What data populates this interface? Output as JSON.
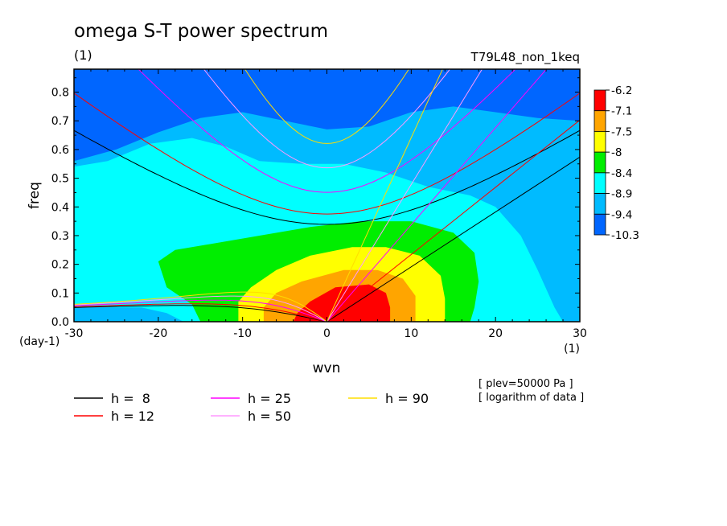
{
  "title": "omega S-T power spectrum",
  "subtitle": "(1)",
  "run_label": "T79L48_non_1keq",
  "notes": [
    "[ plev=50000 Pa ]",
    "[ logarithm of data ]"
  ],
  "chart_data": {
    "type": "heatmap",
    "xlabel": "wvn",
    "ylabel": "freq",
    "x_unit": "(1)",
    "y_unit": "(day-1)",
    "xlim": [
      -30,
      30
    ],
    "ylim": [
      0,
      0.88
    ],
    "x_ticks": [
      -30,
      -20,
      -10,
      0,
      10,
      20,
      30
    ],
    "x_tick_labels": [
      "-30",
      "-20",
      "-10",
      "0",
      "10",
      "20",
      "30"
    ],
    "y_ticks": [
      0,
      0.1,
      0.2,
      0.3,
      0.4,
      0.5,
      0.6,
      0.7,
      0.8
    ],
    "y_tick_labels": [
      "0.0",
      "0.1",
      "0.2",
      "0.3",
      "0.4",
      "0.5",
      "0.6",
      "0.7",
      "0.8"
    ],
    "colorbar": {
      "labels": [
        "-6.2",
        "-7.1",
        "-7.5",
        "-8",
        "-8.4",
        "-8.9",
        "-9.4",
        "-10.3"
      ],
      "colors": [
        "#ff0000",
        "#ffa500",
        "#ffff00",
        "#00ee00",
        "#00ffff",
        "#00bbff",
        "#0066ff"
      ]
    },
    "field_levels": [
      {
        "level": "-9.4",
        "color": "#00bbff"
      },
      {
        "level": "-8.9",
        "color": "#00ffff"
      },
      {
        "level": "-8.4",
        "color": "#00ee00"
      },
      {
        "level": "-8",
        "color": "#ffff00"
      },
      {
        "level": "-7.5",
        "color": "#ffa500"
      },
      {
        "level": "-7.1",
        "color": "#ff0000"
      }
    ],
    "background_color": "#0066ff",
    "dispersion_curves": [
      {
        "label": "h =  8",
        "h": 8,
        "color": "#000000"
      },
      {
        "label": "h = 12",
        "h": 12,
        "color": "#ff0000"
      },
      {
        "label": "h = 25",
        "h": 25,
        "color": "#ff00ff"
      },
      {
        "label": "h = 50",
        "h": 50,
        "color": "#ff99ff"
      },
      {
        "label": "h = 90",
        "h": 90,
        "color": "#ffdd00"
      }
    ]
  }
}
